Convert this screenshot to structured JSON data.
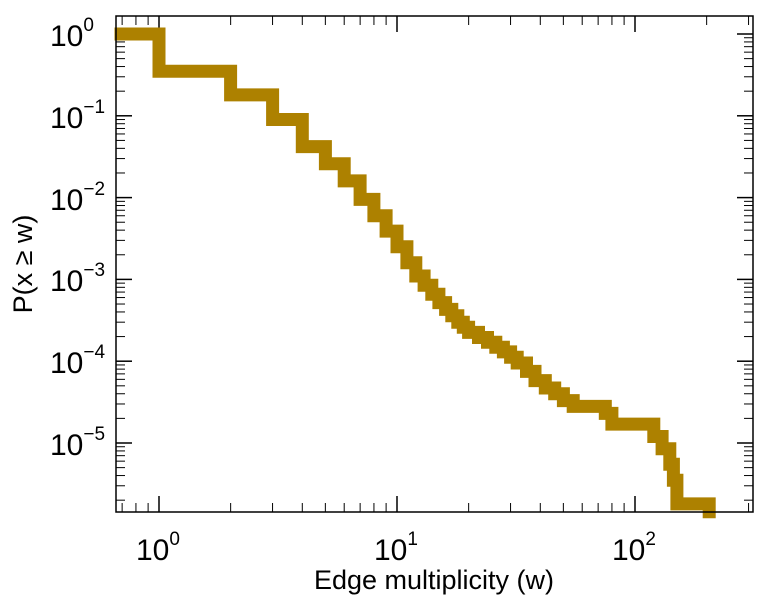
{
  "chart_data": {
    "type": "line",
    "step": true,
    "title": "",
    "xlabel": "Edge multiplicity (w)",
    "ylabel": "P(x ≥ w)",
    "xscale": "log",
    "yscale": "log",
    "xlim": [
      0.65,
      330
    ],
    "ylim": [
      1.2e-06,
      1.25
    ],
    "grid": false,
    "legend": "none",
    "x_ticks": [
      {
        "base": "10",
        "exp": "0",
        "value": 1
      },
      {
        "base": "10",
        "exp": "1",
        "value": 10
      },
      {
        "base": "10",
        "exp": "2",
        "value": 100
      }
    ],
    "y_ticks": [
      {
        "base": "10",
        "exp": "0",
        "value": 1
      },
      {
        "base": "10",
        "exp": "−1",
        "value": 0.1
      },
      {
        "base": "10",
        "exp": "−2",
        "value": 0.01
      },
      {
        "base": "10",
        "exp": "−3",
        "value": 0.001
      },
      {
        "base": "10",
        "exp": "−4",
        "value": 0.0001
      },
      {
        "base": "10",
        "exp": "−5",
        "value": 1e-05
      }
    ],
    "series": [
      {
        "name": "P(x ≥ w)",
        "color": "#ad8100",
        "points": [
          [
            0.65,
            1.0
          ],
          [
            1,
            1.0
          ],
          [
            1,
            0.35
          ],
          [
            2,
            0.35
          ],
          [
            2,
            0.18
          ],
          [
            3,
            0.18
          ],
          [
            3,
            0.09
          ],
          [
            4,
            0.09
          ],
          [
            4,
            0.042
          ],
          [
            5,
            0.042
          ],
          [
            5,
            0.026
          ],
          [
            6,
            0.026
          ],
          [
            6,
            0.016
          ],
          [
            7,
            0.016
          ],
          [
            7,
            0.0095
          ],
          [
            8,
            0.0095
          ],
          [
            8,
            0.006
          ],
          [
            9,
            0.006
          ],
          [
            9,
            0.0039
          ],
          [
            10,
            0.0039
          ],
          [
            10,
            0.0025
          ],
          [
            11,
            0.0025
          ],
          [
            11,
            0.0016
          ],
          [
            12,
            0.0016
          ],
          [
            12,
            0.0011
          ],
          [
            13,
            0.0011
          ],
          [
            13,
            0.00085
          ],
          [
            14,
            0.00085
          ],
          [
            14,
            0.00066
          ],
          [
            15,
            0.00066
          ],
          [
            15,
            0.00052
          ],
          [
            16,
            0.00052
          ],
          [
            16,
            0.00043
          ],
          [
            17,
            0.00043
          ],
          [
            17,
            0.00036
          ],
          [
            18,
            0.00036
          ],
          [
            18,
            0.0003
          ],
          [
            19,
            0.0003
          ],
          [
            19,
            0.00026
          ],
          [
            20,
            0.00026
          ],
          [
            20,
            0.000225
          ],
          [
            22,
            0.000225
          ],
          [
            22,
            0.000195
          ],
          [
            24,
            0.000195
          ],
          [
            24,
            0.00017
          ],
          [
            26,
            0.00017
          ],
          [
            26,
            0.000148
          ],
          [
            28,
            0.000148
          ],
          [
            28,
            0.00013
          ],
          [
            30,
            0.00013
          ],
          [
            30,
            0.000112
          ],
          [
            32,
            0.000112
          ],
          [
            32,
            9.5e-05
          ],
          [
            35,
            9.5e-05
          ],
          [
            35,
            7.5e-05
          ],
          [
            38,
            7.5e-05
          ],
          [
            38,
            5.8e-05
          ],
          [
            42,
            5.8e-05
          ],
          [
            42,
            4.7e-05
          ],
          [
            46,
            4.7e-05
          ],
          [
            46,
            4e-05
          ],
          [
            50,
            4e-05
          ],
          [
            50,
            3.3e-05
          ],
          [
            55,
            3.3e-05
          ],
          [
            55,
            2.8e-05
          ],
          [
            75,
            2.8e-05
          ],
          [
            75,
            2.3e-05
          ],
          [
            80,
            2.3e-05
          ],
          [
            80,
            1.7e-05
          ],
          [
            120,
            1.7e-05
          ],
          [
            120,
            1.2e-05
          ],
          [
            130,
            1.2e-05
          ],
          [
            130,
            8.5e-06
          ],
          [
            140,
            8.5e-06
          ],
          [
            140,
            5.5e-06
          ],
          [
            145,
            5.5e-06
          ],
          [
            145,
            3.5e-06
          ],
          [
            150,
            3.5e-06
          ],
          [
            150,
            1.8e-06
          ],
          [
            205,
            1.8e-06
          ],
          [
            205,
            1.2e-06
          ]
        ]
      }
    ]
  }
}
